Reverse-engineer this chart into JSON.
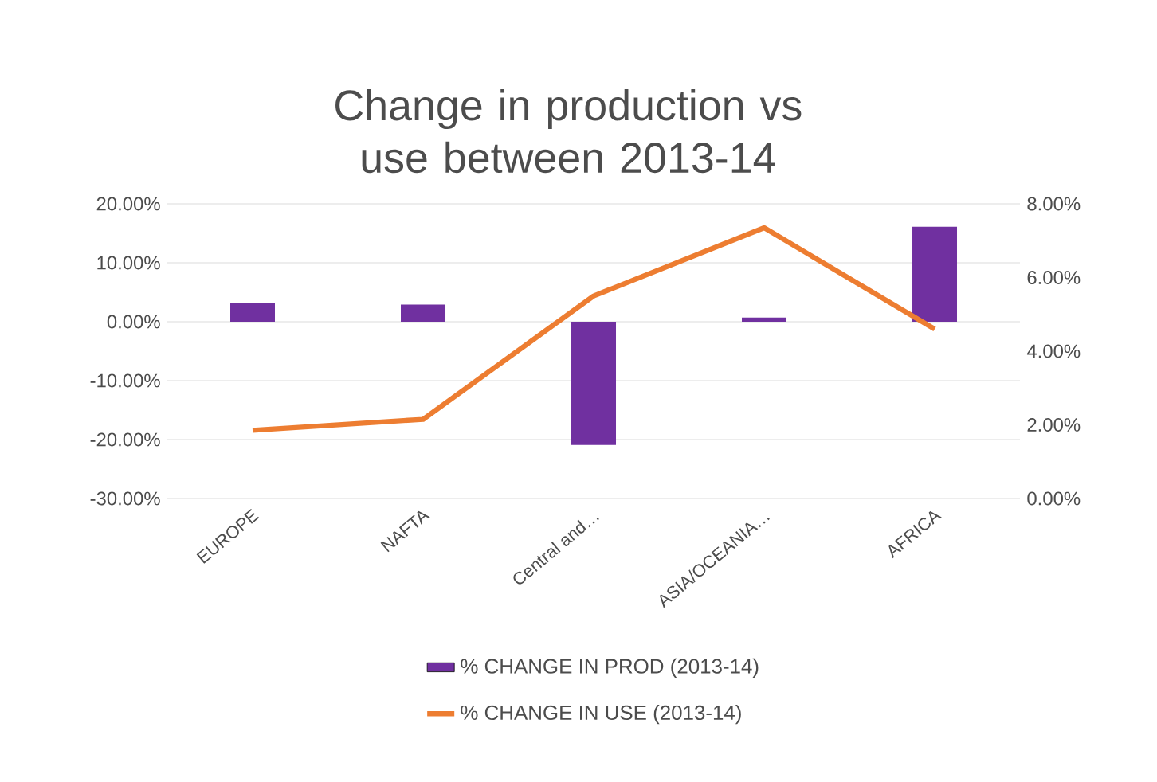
{
  "chart_data": {
    "type": "bar",
    "title": "Change in production vs use between 2013-14",
    "categories": [
      "EUROPE",
      "NAFTA",
      "Central and…",
      "ASIA/OCEANIA…",
      "AFRICA"
    ],
    "series": [
      {
        "name": "% CHANGE IN PROD (2013-14)",
        "color": "#7030a0",
        "values": [
          3.1,
          2.9,
          -20.9,
          0.7,
          16.1
        ]
      },
      {
        "name": "% CHANGE IN USE (2013-14)",
        "type": "line",
        "axis": "y2",
        "color": "#ed7d31",
        "values": [
          1.85,
          2.15,
          5.5,
          7.35,
          4.6
        ]
      }
    ],
    "ylim": [
      -30,
      20
    ],
    "yticks": [
      {
        "value": -30,
        "label": "-30.00%"
      },
      {
        "value": -20,
        "label": "-20.00%"
      },
      {
        "value": -10,
        "label": "-10.00%"
      },
      {
        "value": 0,
        "label": "0.00%"
      },
      {
        "value": 10,
        "label": "10.00%"
      },
      {
        "value": 20,
        "label": "20.00%"
      }
    ],
    "y2lim": [
      0,
      8
    ],
    "y2ticks": [
      {
        "value": 0,
        "label": "0.00%"
      },
      {
        "value": 2,
        "label": "2.00%"
      },
      {
        "value": 4,
        "label": "4.00%"
      },
      {
        "value": 6,
        "label": "6.00%"
      },
      {
        "value": 8,
        "label": "8.00%"
      }
    ],
    "grid": "y",
    "legend": "bottom",
    "marker": "none"
  }
}
